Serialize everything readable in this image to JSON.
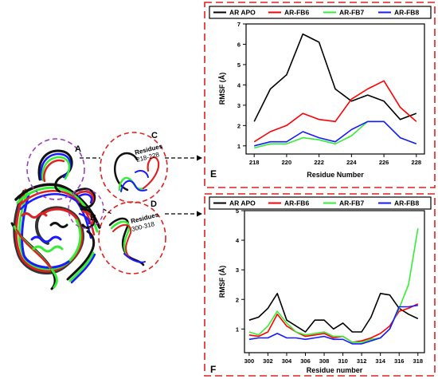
{
  "colors": {
    "apo": "#000000",
    "fb6": "#ff0000",
    "fb7": "#33ee33",
    "fb8": "#1a1aff",
    "panel_border": "#e02020",
    "structure_circle_purple": "#9b3fb5",
    "structure_circle_red": "#e02020"
  },
  "structure": {
    "label_a": "A",
    "label_b": "B",
    "label_c": "C",
    "label_d": "D",
    "residues_c_line1": "Residues",
    "residues_c_line2": "218-228",
    "residues_d_line1": "Residues",
    "residues_d_line2": "300-318"
  },
  "chart_data": [
    {
      "type": "line",
      "panel_label": "E",
      "xlabel": "Residue Number",
      "ylabel": "RMSF (Å)",
      "xlim": [
        217.5,
        228.5
      ],
      "ylim": [
        0.6,
        7
      ],
      "xticks": [
        218,
        220,
        222,
        224,
        226,
        228
      ],
      "yticks": [
        1,
        2,
        3,
        4,
        5,
        6,
        7
      ],
      "legend_position": "top",
      "x": [
        218,
        219,
        220,
        221,
        222,
        223,
        224,
        225,
        226,
        227,
        228
      ],
      "series": [
        {
          "name": "AR APO",
          "color_key": "apo",
          "values": [
            2.2,
            3.8,
            4.5,
            6.5,
            6.1,
            3.8,
            3.2,
            3.5,
            3.2,
            2.3,
            2.6
          ]
        },
        {
          "name": "AR-FB6",
          "color_key": "fb6",
          "values": [
            1.2,
            1.7,
            2.0,
            2.6,
            2.3,
            2.2,
            3.3,
            3.8,
            4.2,
            2.9,
            2.2
          ]
        },
        {
          "name": "AR-FB7",
          "color_key": "fb7",
          "values": [
            0.9,
            1.1,
            1.1,
            1.4,
            1.3,
            1.1,
            1.5,
            2.2,
            2.2,
            1.4,
            1.1
          ]
        },
        {
          "name": "AR-FB8",
          "color_key": "fb8",
          "values": [
            1.0,
            1.2,
            1.2,
            1.7,
            1.4,
            1.2,
            1.8,
            2.2,
            2.2,
            1.4,
            1.1
          ]
        }
      ]
    },
    {
      "type": "line",
      "panel_label": "F",
      "xlabel": "Residue number",
      "ylabel": "RMSF (Å)",
      "xlim": [
        299.5,
        318.7
      ],
      "ylim": [
        0.2,
        5
      ],
      "xticks": [
        300,
        302,
        304,
        306,
        308,
        310,
        312,
        314,
        316,
        318
      ],
      "yticks": [
        1,
        2,
        3,
        4,
        5
      ],
      "legend_position": "top",
      "x": [
        300,
        301,
        302,
        303,
        304,
        305,
        306,
        307,
        308,
        309,
        310,
        311,
        312,
        313,
        314,
        315,
        316,
        317,
        318
      ],
      "series": [
        {
          "name": "AR APO",
          "color_key": "apo",
          "values": [
            1.3,
            1.4,
            1.7,
            2.2,
            1.3,
            1.1,
            0.9,
            1.3,
            1.3,
            1.0,
            1.2,
            0.9,
            0.9,
            1.4,
            2.2,
            2.15,
            1.7,
            1.5,
            1.35
          ]
        },
        {
          "name": "AR-FB6",
          "color_key": "fb6",
          "values": [
            0.8,
            0.75,
            0.9,
            1.5,
            1.1,
            0.9,
            0.75,
            0.8,
            0.85,
            0.7,
            0.75,
            0.55,
            0.6,
            0.7,
            0.85,
            1.1,
            1.6,
            1.7,
            1.85
          ]
        },
        {
          "name": "AR-FB7",
          "color_key": "fb7",
          "values": [
            0.9,
            0.8,
            1.1,
            1.6,
            1.2,
            0.9,
            0.8,
            0.85,
            0.9,
            0.75,
            0.75,
            0.55,
            0.55,
            0.65,
            0.7,
            1.0,
            1.7,
            2.5,
            4.4
          ]
        },
        {
          "name": "AR-FB8",
          "color_key": "fb8",
          "values": [
            0.65,
            0.7,
            0.7,
            0.85,
            0.7,
            0.7,
            0.65,
            0.7,
            0.75,
            0.65,
            0.65,
            0.5,
            0.5,
            0.6,
            0.7,
            1.0,
            1.75,
            1.75,
            1.8
          ]
        }
      ]
    }
  ]
}
